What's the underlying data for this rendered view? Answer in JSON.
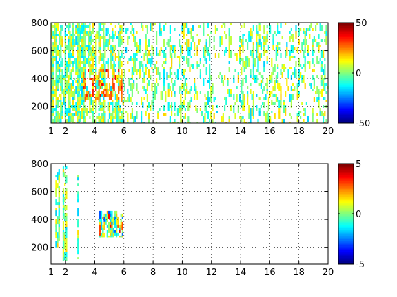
{
  "figure": {
    "background": "#ffffff"
  },
  "chart_data": [
    {
      "type": "heatmap",
      "title": "",
      "xlabel": "",
      "ylabel": "",
      "xlim": [
        1,
        20
      ],
      "ylim": [
        80,
        800
      ],
      "x_ticks": [
        1,
        2,
        4,
        6,
        8,
        10,
        12,
        14,
        16,
        18,
        20
      ],
      "x_tick_labels": [
        "1",
        "2",
        "4",
        "6",
        "8",
        "10",
        "12",
        "14",
        "16",
        "18",
        "20"
      ],
      "y_ticks": [
        200,
        400,
        600,
        800
      ],
      "y_tick_labels": [
        "200",
        "400",
        "600",
        "800"
      ],
      "grid": true,
      "colorbar": {
        "colormap": "jet",
        "min": -50,
        "max": 50,
        "ticks": [
          -50,
          0,
          50
        ],
        "tick_labels": [
          "-50",
          "0",
          "50"
        ]
      },
      "dense_regions": [
        {
          "x": [
            1.0,
            3.2
          ],
          "y": [
            80,
            800
          ],
          "density": 0.6
        },
        {
          "x": [
            3.2,
            6.0
          ],
          "y": [
            80,
            800
          ],
          "density": 0.45
        },
        {
          "x": [
            6.0,
            20.0
          ],
          "y": [
            80,
            800
          ],
          "density": 0.18
        }
      ],
      "hot_spot": {
        "x": [
          3.2,
          5.8
        ],
        "y": [
          250,
          480
        ],
        "value_range": [
          10,
          40
        ]
      }
    },
    {
      "type": "heatmap",
      "title": "",
      "xlabel": "",
      "ylabel": "",
      "xlim": [
        1,
        20
      ],
      "ylim": [
        80,
        800
      ],
      "x_ticks": [
        1,
        2,
        4,
        6,
        8,
        10,
        12,
        14,
        16,
        18,
        20
      ],
      "x_tick_labels": [
        "1",
        "2",
        "4",
        "6",
        "8",
        "10",
        "12",
        "14",
        "16",
        "18",
        "20"
      ],
      "y_ticks": [
        200,
        400,
        600,
        800
      ],
      "y_tick_labels": [
        "200",
        "400",
        "600",
        "800"
      ],
      "grid": true,
      "colorbar": {
        "colormap": "jet",
        "min": -5,
        "max": 5,
        "ticks": [
          -5,
          0,
          5
        ],
        "tick_labels": [
          "-5",
          "0",
          "5"
        ]
      },
      "dense_regions": [
        {
          "x": [
            1.3,
            1.6
          ],
          "y": [
            200,
            760
          ],
          "density": 0.5
        },
        {
          "x": [
            1.8,
            2.1
          ],
          "y": [
            100,
            780
          ],
          "density": 0.5
        },
        {
          "x": [
            2.8,
            2.9
          ],
          "y": [
            120,
            720
          ],
          "density": 0.25
        },
        {
          "x": [
            4.3,
            5.9
          ],
          "y": [
            270,
            460
          ],
          "density": 0.55
        }
      ],
      "hot_spot": {
        "x": [
          4.3,
          5.9
        ],
        "y": [
          270,
          460
        ],
        "value_range": [
          -3,
          4
        ]
      }
    }
  ]
}
